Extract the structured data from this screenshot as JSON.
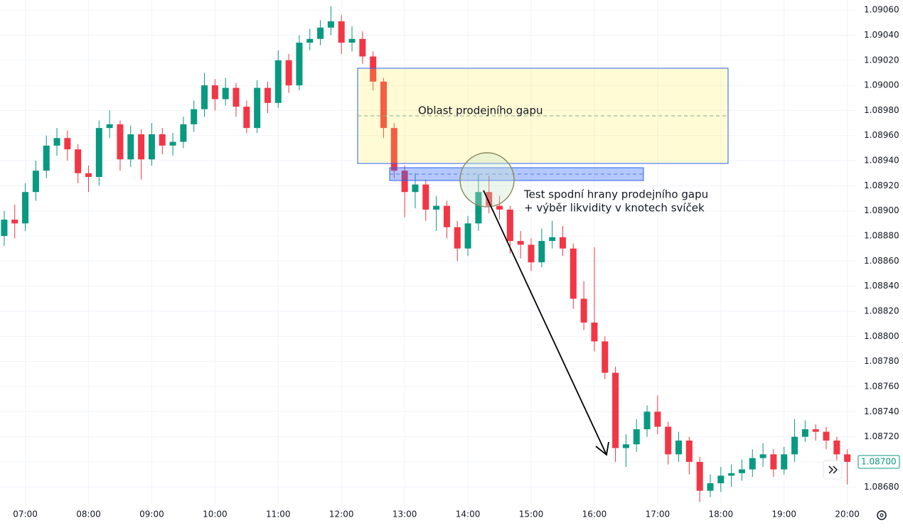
{
  "chart_data": {
    "type": "candlestick",
    "x": [
      400,
      410,
      420,
      430,
      440,
      450,
      460,
      470,
      480,
      490,
      500,
      510,
      520,
      530,
      540,
      550,
      560,
      570,
      580,
      590,
      600,
      610,
      620,
      630,
      640,
      650,
      660,
      670,
      680,
      690,
      700,
      710,
      720,
      730,
      740,
      750,
      760,
      770,
      780,
      790,
      800,
      810,
      820,
      830,
      840,
      850,
      860,
      870,
      880,
      890,
      900,
      910,
      920,
      930,
      940,
      950,
      960,
      970,
      980,
      990,
      1000,
      1010,
      1020,
      1030,
      1040,
      1050,
      1060,
      1070,
      1080,
      1090,
      1100,
      1110,
      1120,
      1130,
      1140,
      1150,
      1160,
      1170,
      1180,
      1190,
      1200
    ],
    "open": [
      1.0888,
      1.08893,
      1.0889,
      1.08915,
      1.08932,
      1.08952,
      1.08958,
      1.08949,
      1.0893,
      1.08927,
      1.08966,
      1.08969,
      1.08941,
      1.08961,
      1.08941,
      1.08961,
      1.08952,
      1.08955,
      1.08969,
      1.08981,
      1.09,
      1.08989,
      1.08998,
      1.08983,
      1.08966,
      1.08998,
      1.08986,
      1.0902,
      1.09,
      1.09034,
      1.09037,
      1.09046,
      1.09051,
      1.09034,
      1.09037,
      1.09023,
      1.09003,
      1.08966,
      1.08932,
      1.08915,
      1.08921,
      1.08901,
      1.08904,
      1.08887,
      1.0887,
      1.0889,
      1.08915,
      1.08904,
      1.08901,
      1.08876,
      1.08873,
      1.08859,
      1.08876,
      1.08879,
      1.0887,
      1.0883,
      1.08811,
      1.08796,
      1.08771,
      1.08711,
      1.08714,
      1.08726,
      1.0874,
      1.08728,
      1.08706,
      1.08717,
      1.087,
      1.08677,
      1.08683,
      1.08689,
      1.08691,
      1.08694,
      1.08703,
      1.08706,
      1.08694,
      1.08706,
      1.0872,
      1.08726,
      1.08724,
      1.08717,
      1.08706
    ],
    "high": [
      1.089,
      1.08905,
      1.08922,
      1.0894,
      1.0896,
      1.08966,
      1.08964,
      1.08953,
      1.08936,
      1.08972,
      1.0898,
      1.08972,
      1.08968,
      1.08965,
      1.0897,
      1.08966,
      1.08962,
      1.08975,
      1.08988,
      1.0901,
      1.09005,
      1.09006,
      1.09002,
      1.08988,
      1.09004,
      1.09003,
      1.09028,
      1.09025,
      1.0904,
      1.09045,
      1.09052,
      1.09063,
      1.09056,
      1.09047,
      1.09043,
      1.09027,
      1.09006,
      1.0897,
      1.08936,
      1.0893,
      1.08925,
      1.08912,
      1.08908,
      1.08892,
      1.08896,
      1.08929,
      1.08928,
      1.08912,
      1.08904,
      1.08884,
      1.08878,
      1.08886,
      1.08892,
      1.08888,
      1.08874,
      1.08844,
      1.08871,
      1.088,
      1.08776,
      1.08722,
      1.08734,
      1.08745,
      1.08753,
      1.08732,
      1.08724,
      1.0872,
      1.08704,
      1.0869,
      1.08696,
      1.08698,
      1.08702,
      1.0871,
      1.08715,
      1.0871,
      1.08712,
      1.08734,
      1.08733,
      1.0873,
      1.08728,
      1.0872,
      1.0871
    ],
    "low": [
      1.08872,
      1.08878,
      1.08884,
      1.08908,
      1.08926,
      1.08944,
      1.0894,
      1.08922,
      1.08915,
      1.0892,
      1.08958,
      1.08932,
      1.08935,
      1.08925,
      1.08936,
      1.08945,
      1.08944,
      1.0895,
      1.08963,
      1.08975,
      1.0898,
      1.08984,
      1.08975,
      1.08962,
      1.08962,
      1.08978,
      1.08982,
      1.08994,
      1.08996,
      1.09028,
      1.09032,
      1.0904,
      1.09025,
      1.09027,
      1.09017,
      1.08996,
      1.08958,
      1.08926,
      1.08895,
      1.08902,
      1.08892,
      1.08884,
      1.08878,
      1.0886,
      1.08864,
      1.08884,
      1.08898,
      1.08893,
      1.08866,
      1.08862,
      1.08852,
      1.08855,
      1.0887,
      1.08864,
      1.08822,
      1.08805,
      1.08788,
      1.08766,
      1.087,
      1.08696,
      1.08708,
      1.0872,
      1.08722,
      1.08698,
      1.087,
      1.0869,
      1.08668,
      1.08672,
      1.08676,
      1.0868,
      1.08685,
      1.08688,
      1.08696,
      1.08688,
      1.0869,
      1.087,
      1.08716,
      1.08717,
      1.0871,
      1.08698,
      1.08682
    ],
    "close": [
      1.08893,
      1.0889,
      1.08915,
      1.08932,
      1.08952,
      1.08958,
      1.08949,
      1.0893,
      1.08927,
      1.08966,
      1.08969,
      1.08941,
      1.08961,
      1.08941,
      1.08961,
      1.08952,
      1.08955,
      1.08969,
      1.08981,
      1.09,
      1.08989,
      1.08998,
      1.08983,
      1.08966,
      1.08998,
      1.08986,
      1.0902,
      1.09,
      1.09034,
      1.09037,
      1.09046,
      1.09051,
      1.09034,
      1.09037,
      1.09023,
      1.09003,
      1.08966,
      1.08932,
      1.08915,
      1.08921,
      1.08901,
      1.08904,
      1.08887,
      1.0887,
      1.0889,
      1.08915,
      1.08904,
      1.08901,
      1.08876,
      1.08873,
      1.08859,
      1.08876,
      1.08879,
      1.0887,
      1.0883,
      1.08811,
      1.08796,
      1.08771,
      1.08711,
      1.08714,
      1.08726,
      1.0874,
      1.08728,
      1.08706,
      1.08717,
      1.087,
      1.08677,
      1.08683,
      1.08689,
      1.08691,
      1.08694,
      1.08703,
      1.08706,
      1.08694,
      1.08706,
      1.0872,
      1.08726,
      1.08724,
      1.08717,
      1.08706,
      1.087
    ],
    "up_color": "#089981",
    "down_color": "#f23645",
    "grid": true,
    "xlim": [
      396,
      1209
    ],
    "ylim": [
      1.08666,
      1.09068
    ],
    "xticks": [
      {
        "value": 420,
        "label": "07:00"
      },
      {
        "value": 480,
        "label": "08:00"
      },
      {
        "value": 540,
        "label": "09:00"
      },
      {
        "value": 600,
        "label": "10:00"
      },
      {
        "value": 660,
        "label": "11:00"
      },
      {
        "value": 720,
        "label": "12:00"
      },
      {
        "value": 780,
        "label": "13:00"
      },
      {
        "value": 840,
        "label": "14:00"
      },
      {
        "value": 900,
        "label": "15:00"
      },
      {
        "value": 960,
        "label": "16:00"
      },
      {
        "value": 1020,
        "label": "17:00"
      },
      {
        "value": 1080,
        "label": "18:00"
      },
      {
        "value": 1140,
        "label": "19:00"
      },
      {
        "value": 1200,
        "label": "20:00"
      }
    ],
    "yticks": [
      {
        "value": 1.0868,
        "label": "1.08680"
      },
      {
        "value": 1.087,
        "label": "1.08700"
      },
      {
        "value": 1.0872,
        "label": "1.08720"
      },
      {
        "value": 1.0874,
        "label": "1.08740"
      },
      {
        "value": 1.0876,
        "label": "1.08760"
      },
      {
        "value": 1.0878,
        "label": "1.08780"
      },
      {
        "value": 1.088,
        "label": "1.08800"
      },
      {
        "value": 1.0882,
        "label": "1.08820"
      },
      {
        "value": 1.0884,
        "label": "1.08840"
      },
      {
        "value": 1.0886,
        "label": "1.08860"
      },
      {
        "value": 1.0888,
        "label": "1.08880"
      },
      {
        "value": 1.089,
        "label": "1.08900"
      },
      {
        "value": 1.0892,
        "label": "1.08920"
      },
      {
        "value": 1.0894,
        "label": "1.08940"
      },
      {
        "value": 1.0896,
        "label": "1.08960"
      },
      {
        "value": 1.0898,
        "label": "1.08980"
      },
      {
        "value": 1.09,
        "label": "1.09000"
      },
      {
        "value": 1.0902,
        "label": "1.09020"
      },
      {
        "value": 1.0904,
        "label": "1.09040"
      },
      {
        "value": 1.0906,
        "label": "1.09060"
      }
    ],
    "last_price": {
      "value": 1.087,
      "label": "1.08700"
    },
    "annotations": [
      "Oblast prodejního gapu",
      "Test spodní hrany prodejního gapu",
      "+ výběr likvidity v knotech svíček"
    ]
  }
}
